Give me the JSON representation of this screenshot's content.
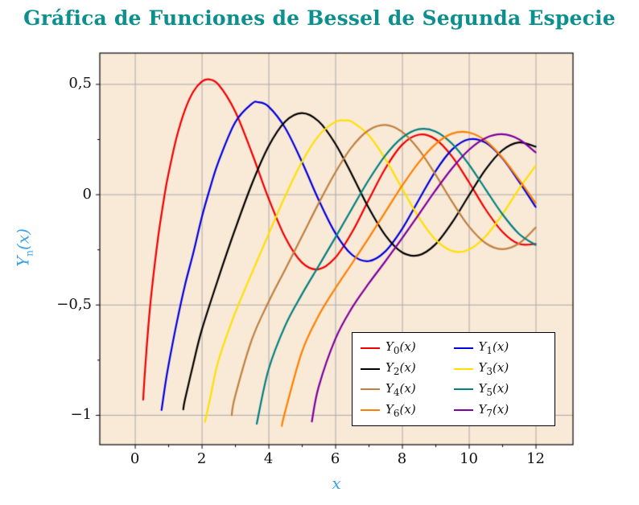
{
  "title": {
    "text": "Gráfica de Funciones de Bessel de Segunda Especie"
  },
  "colors": {
    "background": "#ffffff",
    "title": "#0c8f8f",
    "axis_label": "#3aa2e6",
    "tick_label": "#111111",
    "plot_bg": "#f9e9d7",
    "grid": "#aaaaaa",
    "frame": "#000000",
    "legend_bg": "#ffffff",
    "legend_border": "#000000"
  },
  "axes": {
    "x_label": "x",
    "y_label": "Yn(x)",
    "y_label_main": "Y",
    "y_label_sub": "n",
    "y_label_tail": "(x)",
    "xlim": [
      -1.05,
      13.12
    ],
    "ylim": [
      -1.135,
      0.64
    ],
    "x_ticks": [
      {
        "v": 0,
        "label": "0"
      },
      {
        "v": 2,
        "label": "2"
      },
      {
        "v": 4,
        "label": "4"
      },
      {
        "v": 6,
        "label": "6"
      },
      {
        "v": 8,
        "label": "8"
      },
      {
        "v": 10,
        "label": "10"
      },
      {
        "v": 12,
        "label": "12"
      }
    ],
    "y_ticks": [
      {
        "v": 0.5,
        "label": "0,5"
      },
      {
        "v": 0,
        "label": "0"
      },
      {
        "v": -0.5,
        "label": "−0,5"
      },
      {
        "v": -1,
        "label": "−1"
      }
    ],
    "x_minor_ticks": [
      1,
      3,
      5,
      7,
      9,
      11
    ],
    "y_minor_ticks": [
      -0.75,
      -0.25,
      0.25
    ]
  },
  "chart_data": {
    "type": "line",
    "title": "Gráfica de Funciones de Bessel de Segunda Especie",
    "xlabel": "x",
    "ylabel": "Yn(x)",
    "xlim": [
      -1.05,
      13.12
    ],
    "ylim": [
      -1.135,
      0.64
    ],
    "grid": true,
    "legend_position": "lower right",
    "x_tick_labels": [
      "0",
      "2",
      "4",
      "6",
      "8",
      "10",
      "12"
    ],
    "y_tick_labels": [
      "−1",
      "−0,5",
      "0",
      "0,5"
    ],
    "series": [
      {
        "n": 0,
        "name": "Y0(x)",
        "name_main": "Y",
        "name_sub": "0",
        "name_tail": "(x)",
        "color": "#ee0000",
        "points": [
          [
            0.25,
            -0.931
          ],
          [
            0.3,
            -0.807
          ],
          [
            0.4,
            -0.606
          ],
          [
            0.5,
            -0.444
          ],
          [
            0.7,
            -0.191
          ],
          [
            0.9,
            0.006
          ],
          [
            1.0,
            0.088
          ],
          [
            1.25,
            0.258
          ],
          [
            1.5,
            0.382
          ],
          [
            1.75,
            0.465
          ],
          [
            2.0,
            0.51
          ],
          [
            2.2,
            0.521
          ],
          [
            2.5,
            0.498
          ],
          [
            3.0,
            0.377
          ],
          [
            3.5,
            0.189
          ],
          [
            4.0,
            -0.017
          ],
          [
            4.5,
            -0.195
          ],
          [
            5.0,
            -0.309
          ],
          [
            5.5,
            -0.34
          ],
          [
            6.0,
            -0.288
          ],
          [
            6.5,
            -0.173
          ],
          [
            7.0,
            -0.026
          ],
          [
            7.5,
            0.117
          ],
          [
            8.0,
            0.224
          ],
          [
            8.5,
            0.27
          ],
          [
            9.0,
            0.25
          ],
          [
            9.5,
            0.171
          ],
          [
            10.0,
            0.056
          ],
          [
            10.5,
            -0.068
          ],
          [
            11.0,
            -0.169
          ],
          [
            11.5,
            -0.225
          ],
          [
            12.0,
            -0.225
          ]
        ]
      },
      {
        "n": 1,
        "name": "Y1(x)",
        "name_main": "Y",
        "name_sub": "1",
        "name_tail": "(x)",
        "color": "#0000dd",
        "points": [
          [
            0.8,
            -0.978
          ],
          [
            0.9,
            -0.873
          ],
          [
            1.0,
            -0.781
          ],
          [
            1.25,
            -0.585
          ],
          [
            1.5,
            -0.412
          ],
          [
            1.75,
            -0.266
          ],
          [
            2.0,
            -0.107
          ],
          [
            2.25,
            0.027
          ],
          [
            2.5,
            0.146
          ],
          [
            3.0,
            0.325
          ],
          [
            3.5,
            0.41
          ],
          [
            3.7,
            0.417
          ],
          [
            4.0,
            0.398
          ],
          [
            4.5,
            0.301
          ],
          [
            5.0,
            0.148
          ],
          [
            5.5,
            -0.024
          ],
          [
            6.0,
            -0.175
          ],
          [
            6.5,
            -0.274
          ],
          [
            7.0,
            -0.303
          ],
          [
            7.5,
            -0.259
          ],
          [
            8.0,
            -0.158
          ],
          [
            8.5,
            -0.026
          ],
          [
            9.0,
            0.104
          ],
          [
            9.5,
            0.203
          ],
          [
            10.0,
            0.249
          ],
          [
            10.5,
            0.234
          ],
          [
            11.0,
            0.164
          ],
          [
            11.5,
            0.058
          ],
          [
            12.0,
            -0.057
          ]
        ]
      },
      {
        "n": 2,
        "name": "Y2(x)",
        "name_main": "Y",
        "name_sub": "2",
        "name_tail": "(x)",
        "color": "#000000",
        "points": [
          [
            1.45,
            -0.975
          ],
          [
            1.5,
            -0.931
          ],
          [
            1.75,
            -0.769
          ],
          [
            2.0,
            -0.617
          ],
          [
            2.5,
            -0.381
          ],
          [
            3.0,
            -0.16
          ],
          [
            3.5,
            0.045
          ],
          [
            4.0,
            0.216
          ],
          [
            4.5,
            0.329
          ],
          [
            5.0,
            0.368
          ],
          [
            5.5,
            0.331
          ],
          [
            6.0,
            0.23
          ],
          [
            6.5,
            0.089
          ],
          [
            7.0,
            -0.061
          ],
          [
            7.5,
            -0.186
          ],
          [
            8.0,
            -0.263
          ],
          [
            8.5,
            -0.276
          ],
          [
            9.0,
            -0.227
          ],
          [
            9.5,
            -0.128
          ],
          [
            10.0,
            -0.006
          ],
          [
            10.5,
            0.112
          ],
          [
            11.0,
            0.199
          ],
          [
            11.5,
            0.235
          ],
          [
            12.0,
            0.216
          ]
        ]
      },
      {
        "n": 3,
        "name": "Y3(x)",
        "name_main": "Y",
        "name_sub": "3",
        "name_tail": "(x)",
        "color": "#ffe100",
        "points": [
          [
            2.1,
            -1.032
          ],
          [
            2.25,
            -0.928
          ],
          [
            2.5,
            -0.756
          ],
          [
            3.0,
            -0.539
          ],
          [
            3.5,
            -0.358
          ],
          [
            4.0,
            -0.182
          ],
          [
            4.5,
            -0.009
          ],
          [
            5.0,
            0.146
          ],
          [
            5.5,
            0.265
          ],
          [
            6.0,
            0.328
          ],
          [
            6.3,
            0.334
          ],
          [
            6.5,
            0.329
          ],
          [
            7.0,
            0.268
          ],
          [
            7.5,
            0.16
          ],
          [
            8.0,
            0.027
          ],
          [
            8.5,
            -0.104
          ],
          [
            9.0,
            -0.205
          ],
          [
            9.5,
            -0.257
          ],
          [
            10.0,
            -0.251
          ],
          [
            10.5,
            -0.191
          ],
          [
            11.0,
            -0.092
          ],
          [
            11.5,
            0.024
          ],
          [
            12.0,
            0.129
          ]
        ]
      },
      {
        "n": 4,
        "name": "Y4(x)",
        "name_main": "Y",
        "name_sub": "4",
        "name_tail": "(x)",
        "color": "#bf8040",
        "points": [
          [
            2.9,
            -1.001
          ],
          [
            3.0,
            -0.917
          ],
          [
            3.5,
            -0.66
          ],
          [
            4.0,
            -0.489
          ],
          [
            4.5,
            -0.341
          ],
          [
            5.0,
            -0.192
          ],
          [
            5.5,
            -0.042
          ],
          [
            6.0,
            0.098
          ],
          [
            6.5,
            0.215
          ],
          [
            7.0,
            0.29
          ],
          [
            7.5,
            0.314
          ],
          [
            8.0,
            0.283
          ],
          [
            8.5,
            0.203
          ],
          [
            9.0,
            0.09
          ],
          [
            9.5,
            -0.034
          ],
          [
            10.0,
            -0.145
          ],
          [
            10.5,
            -0.221
          ],
          [
            11.0,
            -0.249
          ],
          [
            11.5,
            -0.223
          ],
          [
            12.0,
            -0.151
          ]
        ]
      },
      {
        "n": 5,
        "name": "Y5(x)",
        "name_main": "Y",
        "name_sub": "5",
        "name_tail": "(x)",
        "color": "#008080",
        "points": [
          [
            3.65,
            -1.04
          ],
          [
            4.0,
            -0.796
          ],
          [
            4.5,
            -0.596
          ],
          [
            5.0,
            -0.454
          ],
          [
            5.5,
            -0.326
          ],
          [
            6.0,
            -0.197
          ],
          [
            6.5,
            -0.065
          ],
          [
            7.0,
            0.064
          ],
          [
            7.5,
            0.176
          ],
          [
            8.0,
            0.256
          ],
          [
            8.5,
            0.295
          ],
          [
            9.0,
            0.285
          ],
          [
            9.5,
            0.229
          ],
          [
            10.0,
            0.136
          ],
          [
            10.5,
            0.023
          ],
          [
            11.0,
            -0.089
          ],
          [
            11.5,
            -0.179
          ],
          [
            12.0,
            -0.23
          ]
        ]
      },
      {
        "n": 6,
        "name": "Y6(x)",
        "name_main": "Y",
        "name_sub": "6",
        "name_tail": "(x)",
        "color": "#ff8000",
        "points": [
          [
            4.4,
            -1.05
          ],
          [
            4.5,
            -0.985
          ],
          [
            5.0,
            -0.715
          ],
          [
            5.5,
            -0.551
          ],
          [
            6.0,
            -0.427
          ],
          [
            6.5,
            -0.314
          ],
          [
            7.0,
            -0.199
          ],
          [
            7.5,
            -0.08
          ],
          [
            8.0,
            0.038
          ],
          [
            8.5,
            0.144
          ],
          [
            9.0,
            0.227
          ],
          [
            9.5,
            0.275
          ],
          [
            10.0,
            0.28
          ],
          [
            10.5,
            0.243
          ],
          [
            11.0,
            0.167
          ],
          [
            11.5,
            0.067
          ],
          [
            12.0,
            -0.04
          ]
        ]
      },
      {
        "n": 7,
        "name": "Y7(x)",
        "name_main": "Y",
        "name_sub": "7",
        "name_tail": "(x)",
        "color": "#7d00a0",
        "points": [
          [
            5.3,
            -1.03
          ],
          [
            5.5,
            -0.875
          ],
          [
            6.0,
            -0.657
          ],
          [
            6.5,
            -0.515
          ],
          [
            7.0,
            -0.405
          ],
          [
            7.5,
            -0.304
          ],
          [
            8.0,
            -0.2
          ],
          [
            8.5,
            -0.092
          ],
          [
            9.0,
            0.017
          ],
          [
            9.5,
            0.118
          ],
          [
            10.0,
            0.201
          ],
          [
            10.5,
            0.255
          ],
          [
            11.0,
            0.272
          ],
          [
            11.5,
            0.249
          ],
          [
            12.0,
            0.19
          ]
        ]
      }
    ]
  }
}
